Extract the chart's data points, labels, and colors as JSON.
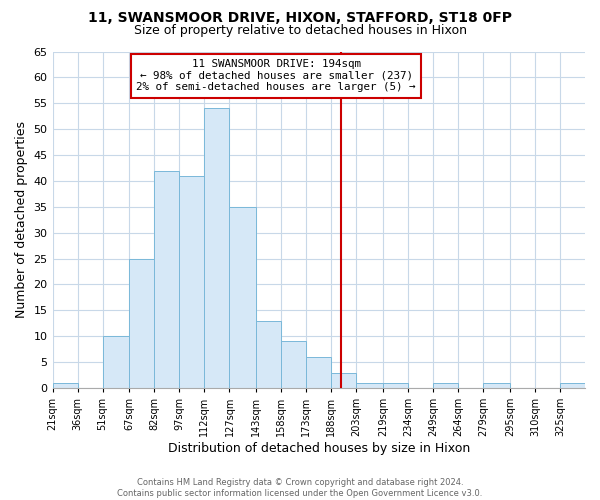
{
  "title": "11, SWANSMOOR DRIVE, HIXON, STAFFORD, ST18 0FP",
  "subtitle": "Size of property relative to detached houses in Hixon",
  "xlabel": "Distribution of detached houses by size in Hixon",
  "ylabel": "Number of detached properties",
  "bin_labels": [
    "21sqm",
    "36sqm",
    "51sqm",
    "67sqm",
    "82sqm",
    "97sqm",
    "112sqm",
    "127sqm",
    "143sqm",
    "158sqm",
    "173sqm",
    "188sqm",
    "203sqm",
    "219sqm",
    "234sqm",
    "249sqm",
    "264sqm",
    "279sqm",
    "295sqm",
    "310sqm",
    "325sqm"
  ],
  "bin_values": [
    1,
    0,
    10,
    25,
    42,
    41,
    54,
    35,
    13,
    9,
    6,
    3,
    1,
    1,
    0,
    1,
    0,
    1,
    0,
    0,
    1
  ],
  "bar_color": "#d6e8f7",
  "bar_edge_color": "#7ab8d9",
  "property_line_x": 194,
  "bin_edges": [
    21,
    36,
    51,
    67,
    82,
    97,
    112,
    127,
    143,
    158,
    173,
    188,
    203,
    219,
    234,
    249,
    264,
    279,
    295,
    310,
    325,
    340
  ],
  "ylim": [
    0,
    65
  ],
  "yticks": [
    0,
    5,
    10,
    15,
    20,
    25,
    30,
    35,
    40,
    45,
    50,
    55,
    60,
    65
  ],
  "annotation_title": "11 SWANSMOOR DRIVE: 194sqm",
  "annotation_line1": "← 98% of detached houses are smaller (237)",
  "annotation_line2": "2% of semi-detached houses are larger (5) →",
  "annotation_box_color": "#ffffff",
  "annotation_box_edge": "#cc0000",
  "vline_color": "#cc0000",
  "footer_line1": "Contains HM Land Registry data © Crown copyright and database right 2024.",
  "footer_line2": "Contains public sector information licensed under the Open Government Licence v3.0.",
  "background_color": "#ffffff",
  "grid_color": "#c8d8e8"
}
